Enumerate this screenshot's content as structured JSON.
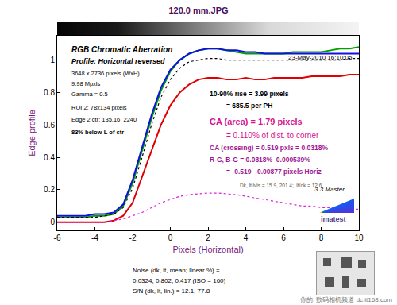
{
  "chart_data": {
    "type": "line",
    "title": "120.0 mm.JPG",
    "x_label": "Pixels (Horizontal)",
    "y_label": "Edge profile",
    "x": [
      -6,
      -5.5,
      -5,
      -4.5,
      -4,
      -3.5,
      -3,
      -2.5,
      -2,
      -1.5,
      -1,
      -0.5,
      0,
      0.5,
      1,
      1.5,
      2,
      2.5,
      3,
      3.5,
      4,
      4.5,
      5,
      5.5,
      6,
      6.5,
      7,
      7.5,
      8,
      8.5,
      9,
      9.5,
      10
    ],
    "series": [
      {
        "color": "#00a000",
        "line_style": "solid",
        "values": [
          0.03,
          0.03,
          0.03,
          0.03,
          0.04,
          0.04,
          0.05,
          0.1,
          0.24,
          0.44,
          0.64,
          0.81,
          0.93,
          1.0,
          1.04,
          1.06,
          1.07,
          1.07,
          1.06,
          1.05,
          1.04,
          1.04,
          1.04,
          1.04,
          1.04,
          1.05,
          1.05,
          1.05,
          1.05,
          1.06,
          1.07,
          1.07,
          1.08
        ]
      },
      {
        "color": "#1010e0",
        "line_style": "solid",
        "values": [
          0.04,
          0.04,
          0.04,
          0.04,
          0.05,
          0.05,
          0.06,
          0.11,
          0.26,
          0.46,
          0.66,
          0.83,
          0.94,
          1.0,
          1.04,
          1.06,
          1.07,
          1.07,
          1.06,
          1.06,
          1.05,
          1.05,
          1.04,
          1.04,
          1.04,
          1.04,
          1.04,
          1.04,
          1.04,
          1.04,
          1.04,
          1.04,
          1.04
        ]
      },
      {
        "color": "#e00000",
        "line_style": "solid",
        "values": [
          0.0,
          0.0,
          0.0,
          0.0,
          0.0,
          0.0,
          0.01,
          0.04,
          0.12,
          0.28,
          0.45,
          0.6,
          0.72,
          0.8,
          0.85,
          0.88,
          0.89,
          0.89,
          0.88,
          0.88,
          0.89,
          0.88,
          0.88,
          0.89,
          0.89,
          0.89,
          0.89,
          0.9,
          0.9,
          0.9,
          0.9,
          0.91,
          0.91
        ]
      },
      {
        "color": "#000000",
        "line_style": "dotted",
        "values": [
          0.03,
          0.03,
          0.03,
          0.03,
          0.03,
          0.04,
          0.05,
          0.09,
          0.21,
          0.4,
          0.6,
          0.77,
          0.88,
          0.95,
          0.99,
          1.0,
          1.01,
          1.01,
          1.0,
          1.0,
          1.0,
          1.0,
          1.0,
          1.0,
          1.0,
          1.0,
          1.0,
          1.0,
          1.0,
          1.0,
          1.0,
          1.01,
          1.01
        ]
      },
      {
        "color": "#e020e0",
        "line_style": "dotted",
        "values": [
          0.0,
          0.0,
          0.0,
          0.0,
          0.0,
          0.0,
          0.01,
          0.02,
          0.04,
          0.06,
          0.09,
          0.12,
          0.14,
          0.16,
          0.17,
          0.175,
          0.18,
          0.18,
          0.175,
          0.17,
          0.16,
          0.15,
          0.14,
          0.13,
          0.12,
          0.11,
          0.1,
          0.1,
          0.09,
          0.09,
          0.08,
          0.08,
          0.08
        ]
      }
    ],
    "xlim": [
      -6,
      10
    ],
    "ylim": [
      -0.05,
      1.15
    ],
    "xticks": [
      -6,
      -4,
      -2,
      0,
      2,
      4,
      6,
      8,
      10
    ],
    "yticks": [
      0,
      0.2,
      0.4,
      0.6,
      0.8,
      1
    ],
    "grid": false,
    "annotations": {
      "heading": [
        "RGB Chromatic Aberration",
        "Profile: Horizontal reversed"
      ],
      "info": [
        "3648 x 2736 pixels (WxH)",
        "9.98 Mpxls",
        "Gamma = 0.5",
        "ROI 2: 78x134 pixels",
        "Edge 2 ctr: 135.16  2240",
        "83% below-L of ctr"
      ],
      "date": "23-May-2010 16:10:05",
      "rise": [
        "10-90% rise = 3.99 pixels",
        "= 685.5 per PH"
      ],
      "ca_area": [
        "CA (area) = 1.79 pixels",
        "= 0.110% of dist. to corner"
      ],
      "ca_crossing": [
        "CA (crossing) = 0.519 pxls = 0.0318%",
        "R-G, B-G = 0.0318%  0.000539%",
        "= -0.519  -0.00877 pixels Horiz"
      ],
      "levels": "Dk, lt lvls = 15.9, 201.4;  lt/dk = 12.6",
      "version": "3.3 Master",
      "logo": "imatest",
      "noise": [
        "Noise (dk, lt, mean; linear %) =",
        "0.0324, 0.802, 0.417 (ISO = 160)",
        "S/N (dk, lt, lin.) = 12.1, 77.8"
      ],
      "watermark": "你的: 数码相机频道 dc.it168.com"
    }
  }
}
